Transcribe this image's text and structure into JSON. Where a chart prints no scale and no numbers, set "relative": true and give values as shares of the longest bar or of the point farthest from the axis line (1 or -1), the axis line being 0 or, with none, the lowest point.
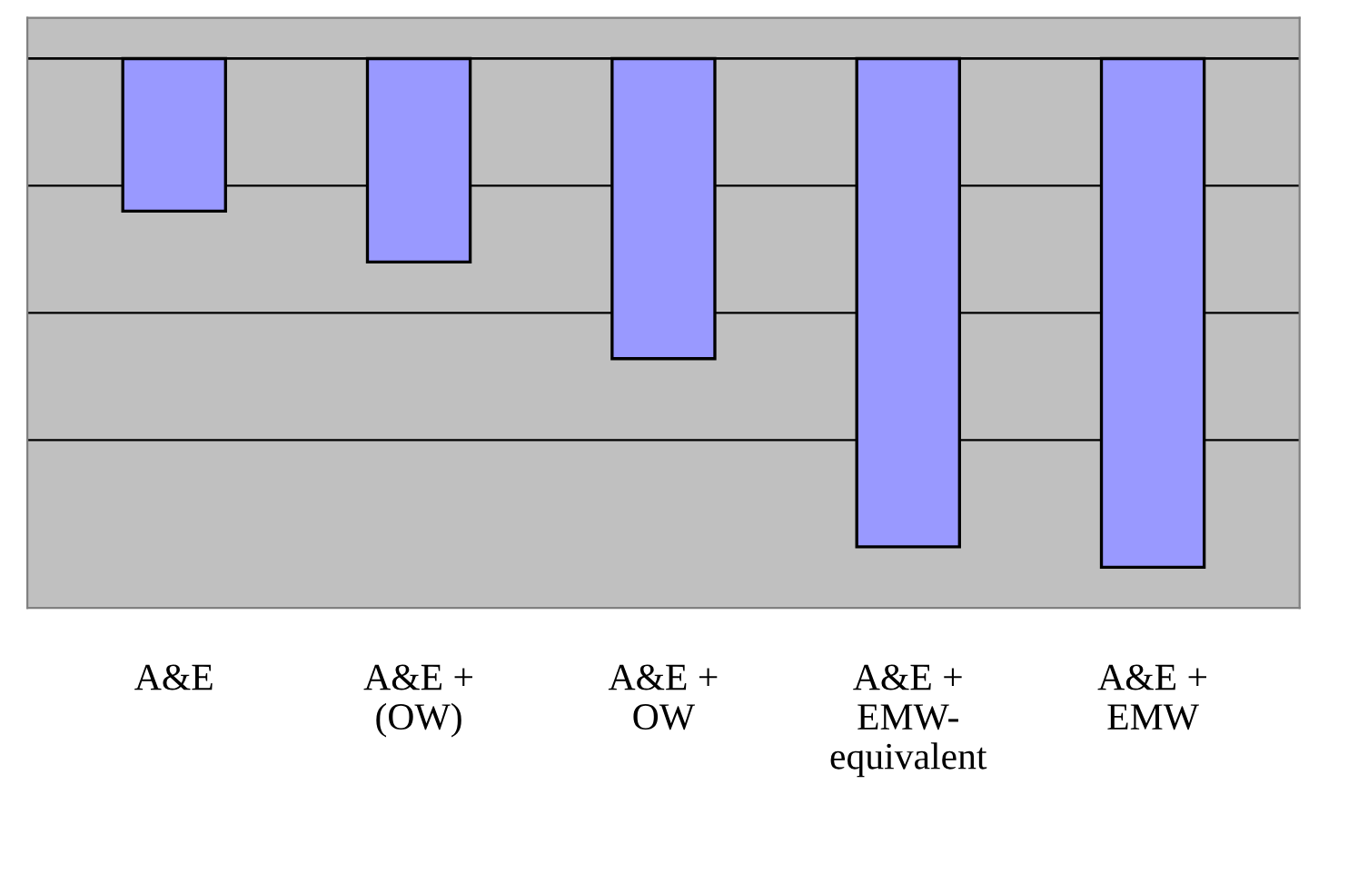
{
  "chart_data": {
    "type": "bar",
    "relative": true,
    "categories": [
      "A&E",
      "A&E +\n(OW)",
      "A&E +\nOW",
      "A&E +\nEMW-\nequivalent",
      "A&E +\nEMW"
    ],
    "values": [
      -0.3,
      -0.4,
      -0.59,
      -0.96,
      -1
    ],
    "color": "#9999ff",
    "grid": "y"
  }
}
